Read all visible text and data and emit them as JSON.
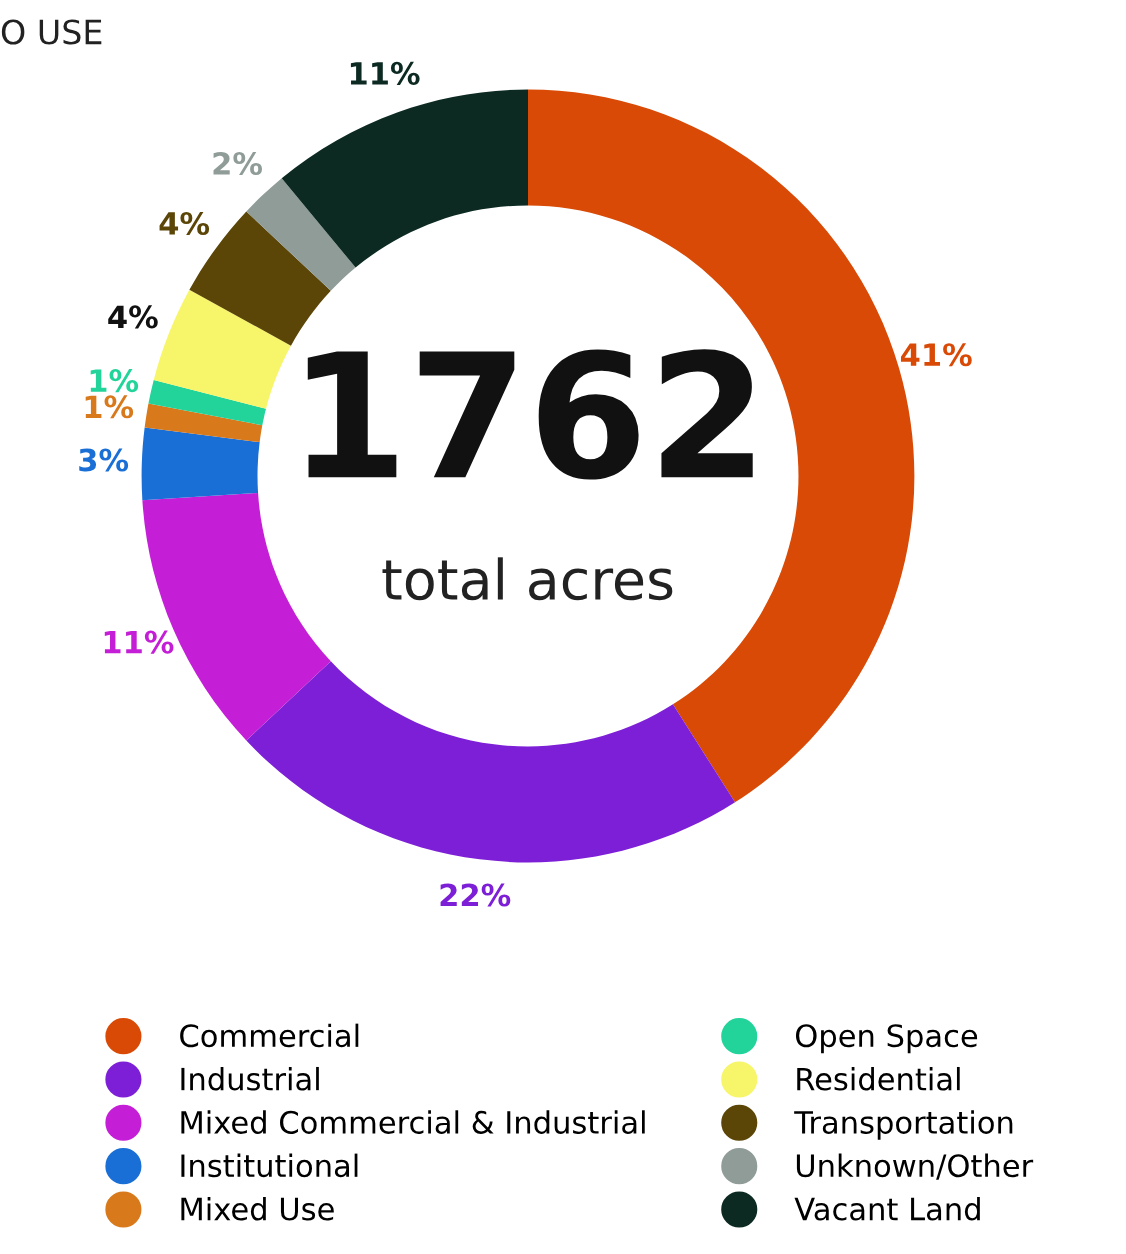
{
  "chart_data": {
    "type": "donut",
    "title": "O USE",
    "categories": [
      "Commercial",
      "Industrial",
      "Mixed Commercial & Industrial",
      "Institutional",
      "Mixed Use",
      "Open Space",
      "Residential",
      "Transportation",
      "Unknown/Other",
      "Vacant Land"
    ],
    "values": [
      41,
      22,
      11,
      3,
      1,
      1,
      4,
      4,
      2,
      11
    ],
    "value_labels": [
      "41%",
      "22%",
      "11%",
      "3%",
      "1%",
      "1%",
      "4%",
      "4%",
      "2%",
      "11%"
    ],
    "colors": [
      "#d94a06",
      "#7d1fd6",
      "#c41fd6",
      "#1a6fd6",
      "#d8791c",
      "#22d39a",
      "#f7f56a",
      "#5b4507",
      "#8f9c98",
      "#0c2a22"
    ],
    "annotations": [
      "1762",
      "total acres"
    ],
    "legend": "bottom"
  }
}
